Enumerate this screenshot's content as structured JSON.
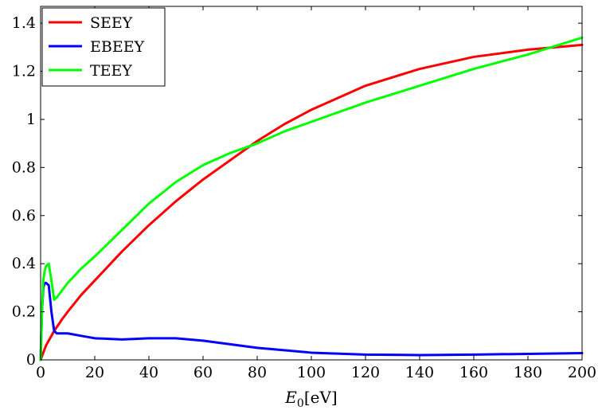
{
  "chart_data": {
    "type": "line",
    "title": "",
    "xlabel_main": "E",
    "xlabel_sub": "0",
    "xlabel_unit": "[eV]",
    "ylabel": "",
    "xlim": [
      0,
      200
    ],
    "ylim": [
      0,
      1.47
    ],
    "xticks": [
      0,
      20,
      40,
      60,
      80,
      100,
      120,
      140,
      160,
      180,
      200
    ],
    "xtick_labels": [
      "0",
      "20",
      "40",
      "60",
      "80",
      "100",
      "120",
      "140",
      "160",
      "180",
      "200"
    ],
    "yticks": [
      0,
      0.2,
      0.4,
      0.6,
      0.8,
      1,
      1.2,
      1.4
    ],
    "ytick_labels": [
      "0",
      "0.2",
      "0.4",
      "0.6",
      "0.8",
      "1",
      "1.2",
      "1.4"
    ],
    "grid": false,
    "legend_position": "top-left",
    "series": [
      {
        "name": "SEEY",
        "color": "#ff0000",
        "x": [
          0,
          1,
          2,
          3,
          5,
          8,
          10,
          15,
          20,
          30,
          40,
          50,
          60,
          70,
          80,
          90,
          100,
          120,
          140,
          160,
          180,
          200
        ],
        "y": [
          0,
          0.03,
          0.06,
          0.08,
          0.12,
          0.17,
          0.2,
          0.27,
          0.33,
          0.45,
          0.56,
          0.66,
          0.75,
          0.83,
          0.91,
          0.98,
          1.04,
          1.14,
          1.21,
          1.26,
          1.29,
          1.31
        ]
      },
      {
        "name": "EBEEY",
        "color": "#0000ff",
        "x": [
          0,
          0.5,
          1,
          1.5,
          2,
          3,
          4,
          5,
          6,
          8,
          10,
          15,
          20,
          30,
          40,
          50,
          60,
          70,
          80,
          90,
          100,
          120,
          140,
          160,
          180,
          200
        ],
        "y": [
          0,
          0.2,
          0.3,
          0.32,
          0.32,
          0.31,
          0.2,
          0.12,
          0.11,
          0.11,
          0.11,
          0.1,
          0.09,
          0.085,
          0.09,
          0.09,
          0.08,
          0.065,
          0.05,
          0.04,
          0.03,
          0.022,
          0.02,
          0.022,
          0.025,
          0.028
        ]
      },
      {
        "name": "TEEY",
        "color": "#00ff00",
        "x": [
          0,
          0.5,
          1,
          1.5,
          2,
          3,
          4,
          5,
          6,
          8,
          10,
          15,
          20,
          30,
          40,
          50,
          60,
          70,
          80,
          90,
          100,
          120,
          140,
          160,
          180,
          200
        ],
        "y": [
          0,
          0.2,
          0.33,
          0.37,
          0.39,
          0.4,
          0.33,
          0.25,
          0.26,
          0.29,
          0.32,
          0.38,
          0.43,
          0.54,
          0.65,
          0.74,
          0.81,
          0.86,
          0.9,
          0.95,
          0.99,
          1.07,
          1.14,
          1.21,
          1.27,
          1.34
        ]
      }
    ]
  }
}
